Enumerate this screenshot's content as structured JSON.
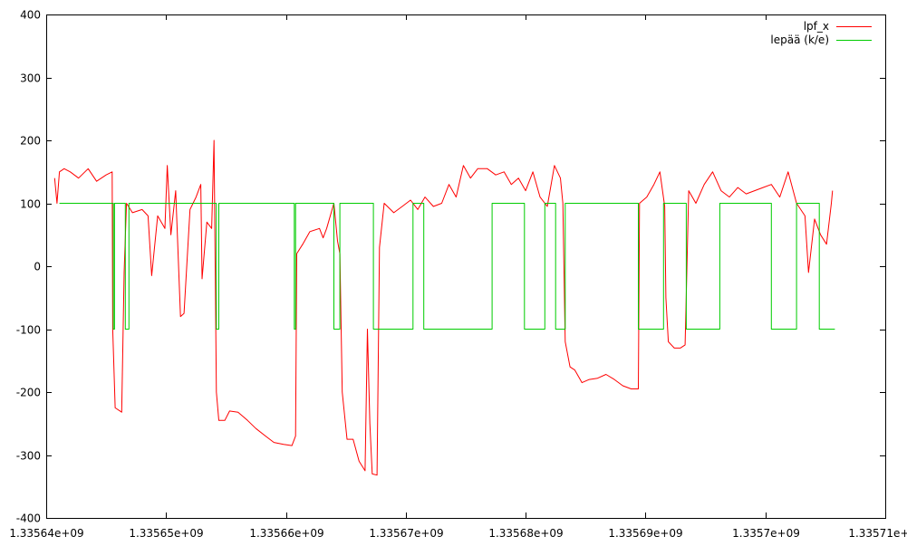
{
  "chart_data": {
    "type": "line",
    "title": "",
    "xlabel": "",
    "ylabel": "",
    "xlim": [
      1335640000,
      1335710000
    ],
    "ylim": [
      -400,
      400
    ],
    "x_ticks": [
      1335640000,
      1335650000,
      1335660000,
      1335670000,
      1335680000,
      1335690000,
      1335700000,
      1335710000
    ],
    "x_tick_labels": [
      "1.33564e+09",
      "1.33565e+09",
      "1.33566e+09",
      "1.33567e+09",
      "1.33568e+09",
      "1.33569e+09",
      "1.3357e+09",
      "1.33571e+09"
    ],
    "y_ticks": [
      -400,
      -300,
      -200,
      -100,
      0,
      100,
      200,
      300,
      400
    ],
    "y_tick_labels": [
      "-400",
      "-300",
      "-200",
      "-100",
      "0",
      "100",
      "200",
      "300",
      "400"
    ],
    "grid": false,
    "legend_position": "top-right",
    "series": [
      {
        "name": "lpf_x",
        "color": "#ff0000",
        "points": [
          [
            1335640700,
            140
          ],
          [
            1335640900,
            100
          ],
          [
            1335641100,
            150
          ],
          [
            1335641500,
            155
          ],
          [
            1335642000,
            150
          ],
          [
            1335642700,
            140
          ],
          [
            1335643500,
            155
          ],
          [
            1335644200,
            135
          ],
          [
            1335645000,
            145
          ],
          [
            1335645500,
            150
          ],
          [
            1335645550,
            -100
          ],
          [
            1335645750,
            -225
          ],
          [
            1335646300,
            -232
          ],
          [
            1335646500,
            -10
          ],
          [
            1335646700,
            100
          ],
          [
            1335647200,
            85
          ],
          [
            1335648000,
            90
          ],
          [
            1335648500,
            80
          ],
          [
            1335648800,
            -15
          ],
          [
            1335649300,
            80
          ],
          [
            1335649900,
            60
          ],
          [
            1335650100,
            160
          ],
          [
            1335650400,
            50
          ],
          [
            1335650800,
            120
          ],
          [
            1335651200,
            -80
          ],
          [
            1335651500,
            -75
          ],
          [
            1335652000,
            90
          ],
          [
            1335652500,
            110
          ],
          [
            1335652900,
            130
          ],
          [
            1335653000,
            -20
          ],
          [
            1335653400,
            70
          ],
          [
            1335653800,
            60
          ],
          [
            1335654000,
            200
          ],
          [
            1335654200,
            -200
          ],
          [
            1335654400,
            -245
          ],
          [
            1335654900,
            -245
          ],
          [
            1335655300,
            -230
          ],
          [
            1335656000,
            -232
          ],
          [
            1335656800,
            -245
          ],
          [
            1335657500,
            -258
          ],
          [
            1335658300,
            -270
          ],
          [
            1335659000,
            -280
          ],
          [
            1335659800,
            -283
          ],
          [
            1335660500,
            -285
          ],
          [
            1335660800,
            -270
          ],
          [
            1335660900,
            20
          ],
          [
            1335661400,
            35
          ],
          [
            1335662000,
            55
          ],
          [
            1335662800,
            60
          ],
          [
            1335663100,
            45
          ],
          [
            1335663400,
            60
          ],
          [
            1335664000,
            100
          ],
          [
            1335664300,
            40
          ],
          [
            1335664500,
            20
          ],
          [
            1335664700,
            -200
          ],
          [
            1335665100,
            -275
          ],
          [
            1335665600,
            -275
          ],
          [
            1335666100,
            -310
          ],
          [
            1335666600,
            -325
          ],
          [
            1335666800,
            -100
          ],
          [
            1335667000,
            -250
          ],
          [
            1335667200,
            -330
          ],
          [
            1335667600,
            -332
          ],
          [
            1335667800,
            30
          ],
          [
            1335668200,
            100
          ],
          [
            1335669000,
            85
          ],
          [
            1335669700,
            95
          ],
          [
            1335670400,
            105
          ],
          [
            1335671000,
            90
          ],
          [
            1335671600,
            110
          ],
          [
            1335672300,
            95
          ],
          [
            1335673000,
            100
          ],
          [
            1335673600,
            130
          ],
          [
            1335674200,
            110
          ],
          [
            1335674800,
            160
          ],
          [
            1335675400,
            140
          ],
          [
            1335676000,
            155
          ],
          [
            1335676800,
            155
          ],
          [
            1335677500,
            145
          ],
          [
            1335678200,
            150
          ],
          [
            1335678800,
            130
          ],
          [
            1335679400,
            140
          ],
          [
            1335680000,
            120
          ],
          [
            1335680600,
            150
          ],
          [
            1335681200,
            110
          ],
          [
            1335681800,
            95
          ],
          [
            1335682400,
            160
          ],
          [
            1335682900,
            140
          ],
          [
            1335683100,
            100
          ],
          [
            1335683300,
            -120
          ],
          [
            1335683700,
            -160
          ],
          [
            1335684100,
            -165
          ],
          [
            1335684700,
            -185
          ],
          [
            1335685300,
            -180
          ],
          [
            1335686000,
            -178
          ],
          [
            1335686700,
            -172
          ],
          [
            1335687400,
            -180
          ],
          [
            1335688100,
            -190
          ],
          [
            1335688800,
            -195
          ],
          [
            1335689400,
            -195
          ],
          [
            1335689500,
            100
          ],
          [
            1335690100,
            110
          ],
          [
            1335690700,
            130
          ],
          [
            1335691200,
            150
          ],
          [
            1335691600,
            95
          ],
          [
            1335691700,
            -50
          ],
          [
            1335691900,
            -120
          ],
          [
            1335692400,
            -130
          ],
          [
            1335692900,
            -130
          ],
          [
            1335693300,
            -125
          ],
          [
            1335693600,
            120
          ],
          [
            1335694200,
            100
          ],
          [
            1335694900,
            130
          ],
          [
            1335695600,
            150
          ],
          [
            1335696300,
            120
          ],
          [
            1335697000,
            110
          ],
          [
            1335697700,
            125
          ],
          [
            1335698400,
            115
          ],
          [
            1335699100,
            120
          ],
          [
            1335699800,
            125
          ],
          [
            1335700500,
            130
          ],
          [
            1335701200,
            110
          ],
          [
            1335701900,
            150
          ],
          [
            1335702600,
            100
          ],
          [
            1335703300,
            80
          ],
          [
            1335703600,
            -10
          ],
          [
            1335704100,
            75
          ],
          [
            1335704600,
            50
          ],
          [
            1335705100,
            35
          ],
          [
            1335705500,
            100
          ],
          [
            1335705600,
            120
          ]
        ]
      },
      {
        "name": "lepää (k/e)",
        "color": "#00cc00",
        "points": [
          [
            1335641100,
            100
          ],
          [
            1335645600,
            100
          ],
          [
            1335645600,
            -100
          ],
          [
            1335645700,
            -100
          ],
          [
            1335645700,
            100
          ],
          [
            1335646600,
            100
          ],
          [
            1335646600,
            -100
          ],
          [
            1335646900,
            -100
          ],
          [
            1335646900,
            100
          ],
          [
            1335654200,
            100
          ],
          [
            1335654200,
            -100
          ],
          [
            1335654400,
            -100
          ],
          [
            1335654400,
            100
          ],
          [
            1335660700,
            100
          ],
          [
            1335660700,
            -100
          ],
          [
            1335660800,
            -100
          ],
          [
            1335660800,
            100
          ],
          [
            1335664000,
            100
          ],
          [
            1335664000,
            -100
          ],
          [
            1335664500,
            -100
          ],
          [
            1335664500,
            100
          ],
          [
            1335667300,
            100
          ],
          [
            1335667300,
            -100
          ],
          [
            1335670600,
            -100
          ],
          [
            1335670600,
            100
          ],
          [
            1335671500,
            100
          ],
          [
            1335671500,
            -100
          ],
          [
            1335677200,
            -100
          ],
          [
            1335677200,
            100
          ],
          [
            1335679900,
            100
          ],
          [
            1335679900,
            -100
          ],
          [
            1335681600,
            -100
          ],
          [
            1335681600,
            100
          ],
          [
            1335682500,
            100
          ],
          [
            1335682500,
            -100
          ],
          [
            1335683300,
            -100
          ],
          [
            1335683300,
            100
          ],
          [
            1335689400,
            100
          ],
          [
            1335689400,
            -100
          ],
          [
            1335691500,
            -100
          ],
          [
            1335691500,
            100
          ],
          [
            1335693400,
            100
          ],
          [
            1335693400,
            -100
          ],
          [
            1335696200,
            -100
          ],
          [
            1335696200,
            100
          ],
          [
            1335700500,
            100
          ],
          [
            1335700500,
            -100
          ],
          [
            1335702600,
            -100
          ],
          [
            1335702600,
            100
          ],
          [
            1335704500,
            100
          ],
          [
            1335704500,
            -100
          ],
          [
            1335705800,
            -100
          ]
        ]
      }
    ]
  }
}
